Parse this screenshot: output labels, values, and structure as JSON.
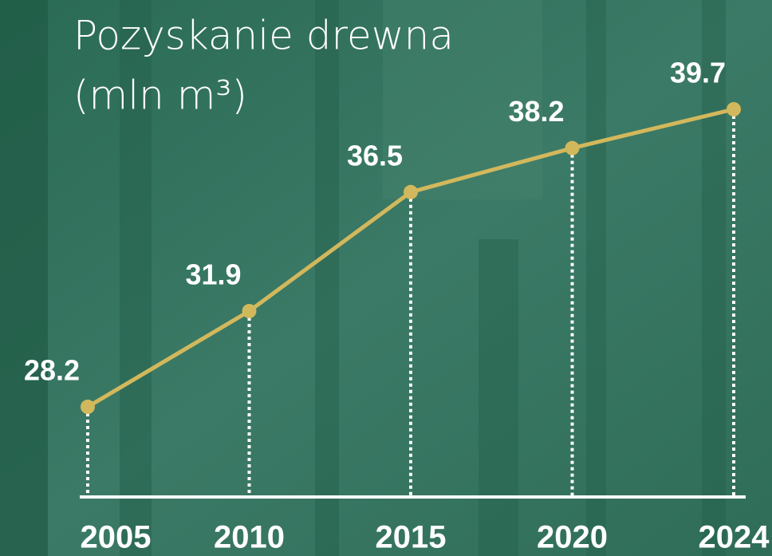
{
  "chart_data": {
    "type": "line",
    "title": "Pozyskanie drewna",
    "subtitle": "(mln m³)",
    "categories": [
      "2005",
      "2010",
      "2015",
      "2020",
      "2024"
    ],
    "values": [
      28.2,
      31.9,
      36.5,
      38.2,
      39.7
    ],
    "color": "#d2b85c"
  }
}
